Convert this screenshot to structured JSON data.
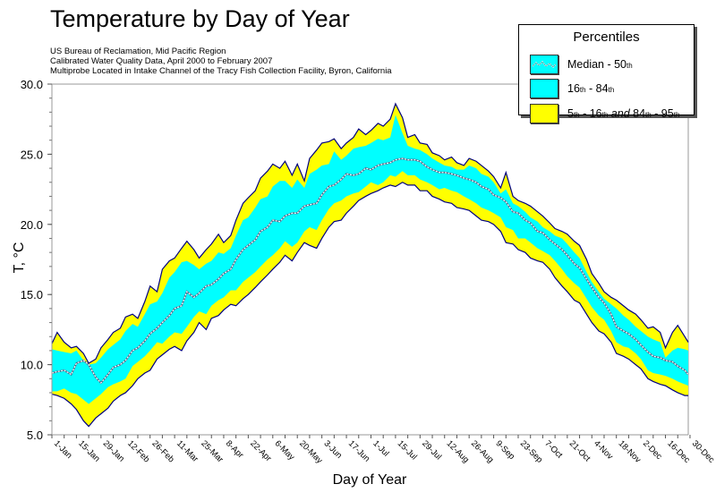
{
  "chart_data": {
    "type": "area",
    "title": "Temperature by Day of Year",
    "subtitle": [
      "US Bureau of Reclamation, Mid Pacific Region",
      "Calibrated Water Quality Data, April 2000 to February 2007",
      "Multiprobe Located in Intake Channel of the Tracy Fish Collection Facility, Byron, California"
    ],
    "xlabel": "Day of Year",
    "ylabel": "T, °C",
    "ylim": [
      5,
      30
    ],
    "xlim": [
      1,
      364
    ],
    "yticks": [
      "5.0",
      "10.0",
      "15.0",
      "20.0",
      "25.0",
      "30.0"
    ],
    "ytick_values": [
      5,
      10,
      15,
      20,
      25,
      30
    ],
    "xticks": [
      "1-Jan",
      "15-Jan",
      "29-Jan",
      "12-Feb",
      "26-Feb",
      "11-Mar",
      "25-Mar",
      "8-Apr",
      "22-Apr",
      "6-May",
      "20-May",
      "3-Jun",
      "17-Jun",
      "1-Jul",
      "15-Jul",
      "29-Jul",
      "12-Aug",
      "26-Aug",
      "9-Sep",
      "23-Sep",
      "7-Oct",
      "21-Oct",
      "4-Nov",
      "18-Nov",
      "2-Dec",
      "16-Dec",
      "30-Dec"
    ],
    "xtick_days": [
      1,
      15,
      29,
      43,
      57,
      71,
      85,
      99,
      113,
      127,
      141,
      155,
      169,
      183,
      197,
      211,
      225,
      239,
      253,
      267,
      281,
      295,
      309,
      323,
      337,
      351,
      365
    ],
    "legend": {
      "title": "Percentiles",
      "placement": "top-right",
      "entries": [
        {
          "label": "Median - 50",
          "sup": "th",
          "style": "median"
        },
        {
          "label_parts": [
            "16",
            "th",
            " - 84",
            "th"
          ],
          "style": "inner"
        },
        {
          "label_parts": [
            "5",
            "th",
            " - 16",
            "th",
            " and ",
            "84",
            "th",
            " - 95",
            "th"
          ],
          "style": "outer"
        }
      ]
    },
    "colors": {
      "inner_band": "#00ffff",
      "outer_band": "#ffff00",
      "outline": "#000080",
      "median": "#ffffff",
      "axis": "#999999"
    },
    "x": [
      1,
      4,
      8,
      12,
      15,
      19,
      22,
      26,
      29,
      33,
      36,
      40,
      43,
      47,
      50,
      54,
      57,
      61,
      64,
      68,
      71,
      75,
      78,
      82,
      85,
      89,
      92,
      96,
      99,
      103,
      106,
      110,
      113,
      117,
      120,
      124,
      127,
      131,
      134,
      138,
      141,
      145,
      148,
      152,
      155,
      159,
      162,
      166,
      169,
      173,
      176,
      180,
      183,
      187,
      190,
      194,
      197,
      201,
      204,
      208,
      211,
      215,
      218,
      222,
      225,
      229,
      232,
      236,
      239,
      243,
      246,
      250,
      253,
      257,
      260,
      264,
      267,
      271,
      274,
      278,
      281,
      285,
      288,
      292,
      295,
      299,
      302,
      306,
      309,
      313,
      316,
      320,
      323,
      327,
      330,
      334,
      337,
      341,
      344,
      348,
      351,
      355,
      358,
      362,
      364
    ],
    "series": [
      {
        "name": "p95",
        "values": [
          11.5,
          12.3,
          11.6,
          11.2,
          11.3,
          10.8,
          10.1,
          10.4,
          11.2,
          11.8,
          12.3,
          12.6,
          13.4,
          13.6,
          13.3,
          14.5,
          15.6,
          15.2,
          16.8,
          17.4,
          17.6,
          18.3,
          18.8,
          18.2,
          17.6,
          18.2,
          18.6,
          19.3,
          18.7,
          19.2,
          20.3,
          21.5,
          21.9,
          22.4,
          23.3,
          23.8,
          24.3,
          24.0,
          24.5,
          23.5,
          24.3,
          23.1,
          24.7,
          25.3,
          25.8,
          25.9,
          26.1,
          25.4,
          25.8,
          26.2,
          26.8,
          26.4,
          26.7,
          27.2,
          27.0,
          27.5,
          28.6,
          27.6,
          26.2,
          26.4,
          25.8,
          25.7,
          25.1,
          24.9,
          24.6,
          24.8,
          24.4,
          24.2,
          24.7,
          24.5,
          24.2,
          23.8,
          23.4,
          22.6,
          23.7,
          22.0,
          21.7,
          21.5,
          21.3,
          20.9,
          20.6,
          20.1,
          19.7,
          19.5,
          19.3,
          18.8,
          18.5,
          17.5,
          16.5,
          15.8,
          15.2,
          14.8,
          14.6,
          14.2,
          13.9,
          13.6,
          13.2,
          12.6,
          12.7,
          12.3,
          11.2,
          12.3,
          12.8,
          12.0,
          11.6
        ]
      },
      {
        "name": "p84",
        "values": [
          11.1,
          11.0,
          10.9,
          10.8,
          11.0,
          10.3,
          10.0,
          10.1,
          10.5,
          11.1,
          11.4,
          11.8,
          12.4,
          12.9,
          12.7,
          13.6,
          14.3,
          14.5,
          15.1,
          16.2,
          16.6,
          17.3,
          17.4,
          17.1,
          16.8,
          17.2,
          17.4,
          18.0,
          17.9,
          18.3,
          19.2,
          20.3,
          20.5,
          21.2,
          21.8,
          22.0,
          22.7,
          23.1,
          23.1,
          22.6,
          23.2,
          22.6,
          23.6,
          23.9,
          24.2,
          24.3,
          25.2,
          24.6,
          24.9,
          25.4,
          25.5,
          25.6,
          25.8,
          26.1,
          26.0,
          26.2,
          27.8,
          26.5,
          25.6,
          25.4,
          25.3,
          25.0,
          24.7,
          24.4,
          24.2,
          24.1,
          23.9,
          23.9,
          24.2,
          24.0,
          23.6,
          23.4,
          23.0,
          22.2,
          22.5,
          21.5,
          21.3,
          20.9,
          20.5,
          20.2,
          19.8,
          19.5,
          19.2,
          19.0,
          18.6,
          18.0,
          17.6,
          16.6,
          15.9,
          15.2,
          14.7,
          14.3,
          14.0,
          13.5,
          13.2,
          12.7,
          12.4,
          12.0,
          11.8,
          11.6,
          10.5,
          11.0,
          11.2,
          11.1,
          11.0
        ]
      },
      {
        "name": "p50",
        "values": [
          9.4,
          9.5,
          9.6,
          9.3,
          10.1,
          10.3,
          10.0,
          9.1,
          8.7,
          9.3,
          9.8,
          10.0,
          10.3,
          11.0,
          11.2,
          11.7,
          12.2,
          12.6,
          13.0,
          13.5,
          14.0,
          14.2,
          15.2,
          14.8,
          15.1,
          15.6,
          15.7,
          16.1,
          16.5,
          16.8,
          17.5,
          18.2,
          18.5,
          18.9,
          19.5,
          19.8,
          20.3,
          20.2,
          20.6,
          20.8,
          20.8,
          21.3,
          21.4,
          21.5,
          22.1,
          22.7,
          22.8,
          23.2,
          23.6,
          23.5,
          23.6,
          24.0,
          23.9,
          24.2,
          24.3,
          24.4,
          24.6,
          24.7,
          24.6,
          24.6,
          24.5,
          24.1,
          23.9,
          23.7,
          23.7,
          23.6,
          23.5,
          23.3,
          23.2,
          23.0,
          22.7,
          22.5,
          22.1,
          21.9,
          21.6,
          20.9,
          20.8,
          20.3,
          20.1,
          19.5,
          19.4,
          18.9,
          18.6,
          18.2,
          17.8,
          17.2,
          16.9,
          16.1,
          15.5,
          14.8,
          14.4,
          13.6,
          12.7,
          12.4,
          12.2,
          11.8,
          11.4,
          10.9,
          10.6,
          10.5,
          10.3,
          10.2,
          9.9,
          9.6,
          9.3
        ]
      },
      {
        "name": "p16",
        "values": [
          8.1,
          8.1,
          8.3,
          8.0,
          7.9,
          7.5,
          7.2,
          7.6,
          7.9,
          8.4,
          8.6,
          8.8,
          9.0,
          9.9,
          10.2,
          10.6,
          11.0,
          11.6,
          11.5,
          12.0,
          12.3,
          12.2,
          12.7,
          13.4,
          13.8,
          13.6,
          14.2,
          14.6,
          14.8,
          15.3,
          15.3,
          15.9,
          16.2,
          16.6,
          17.0,
          17.5,
          17.8,
          18.3,
          18.8,
          18.4,
          18.7,
          19.5,
          19.8,
          19.6,
          20.3,
          21.1,
          21.5,
          21.7,
          22.0,
          22.2,
          22.3,
          22.7,
          23.0,
          22.8,
          23.0,
          23.5,
          23.4,
          23.8,
          23.5,
          23.5,
          23.2,
          23.0,
          22.8,
          22.5,
          22.6,
          22.4,
          22.3,
          22.0,
          21.8,
          21.5,
          21.2,
          21.0,
          20.8,
          20.5,
          19.8,
          19.6,
          19.0,
          19.0,
          18.7,
          18.3,
          18.1,
          17.8,
          17.4,
          16.8,
          16.3,
          15.8,
          15.5,
          14.7,
          14.1,
          13.5,
          13.2,
          12.4,
          11.6,
          11.3,
          11.2,
          10.8,
          10.4,
          9.6,
          9.4,
          9.3,
          9.2,
          9.0,
          8.8,
          8.6,
          8.5
        ]
      },
      {
        "name": "p5",
        "values": [
          7.9,
          7.8,
          7.6,
          7.2,
          6.8,
          6.0,
          5.6,
          6.2,
          6.5,
          6.9,
          7.4,
          7.8,
          8.0,
          8.5,
          9.0,
          9.4,
          9.6,
          10.4,
          10.7,
          11.1,
          11.3,
          11.0,
          11.7,
          12.3,
          13.0,
          12.5,
          13.3,
          13.5,
          13.9,
          14.3,
          14.2,
          14.7,
          15.0,
          15.5,
          15.9,
          16.4,
          16.8,
          17.3,
          17.8,
          17.4,
          18.0,
          18.7,
          18.5,
          18.3,
          19.0,
          19.8,
          20.2,
          20.3,
          20.8,
          21.3,
          21.7,
          22.0,
          22.2,
          22.4,
          22.6,
          22.8,
          22.7,
          23.0,
          22.8,
          22.8,
          22.4,
          22.4,
          22.0,
          21.8,
          21.6,
          21.5,
          21.2,
          21.1,
          21.0,
          20.6,
          20.3,
          20.2,
          20.0,
          19.5,
          18.7,
          18.6,
          18.2,
          18.0,
          17.6,
          17.4,
          17.3,
          16.8,
          16.2,
          15.6,
          15.2,
          14.6,
          14.4,
          13.6,
          13.0,
          12.4,
          12.2,
          11.6,
          10.8,
          10.6,
          10.4,
          10.0,
          9.7,
          9.0,
          8.8,
          8.6,
          8.5,
          8.2,
          8.0,
          7.8,
          7.8
        ]
      }
    ]
  }
}
